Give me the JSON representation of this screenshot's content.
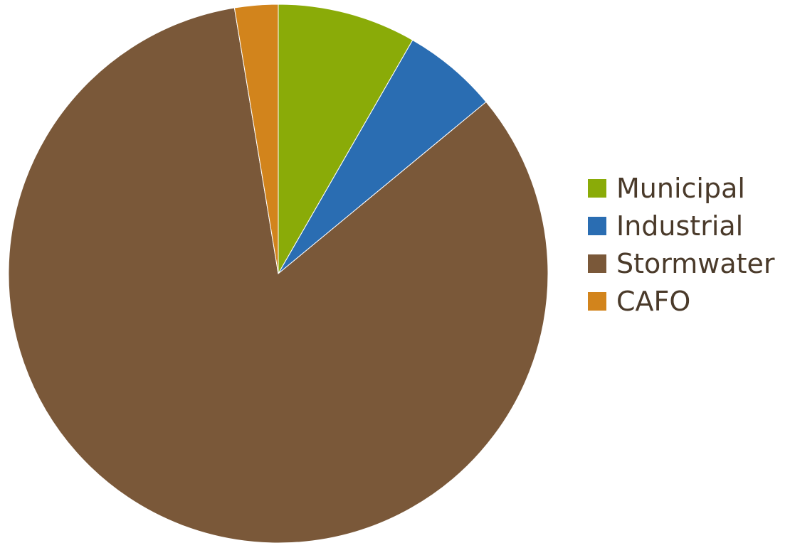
{
  "chart_data": {
    "type": "pie",
    "title": "",
    "legend_position": "right",
    "categories": [
      "Municipal",
      "Industrial",
      "Stormwater",
      "CAFO"
    ],
    "values": [
      8.3,
      5.7,
      83.4,
      2.6
    ],
    "colors": [
      "#8aab08",
      "#2a6db2",
      "#7a5839",
      "#d2841c"
    ],
    "start_angle_deg": 0,
    "direction": "clockwise"
  }
}
